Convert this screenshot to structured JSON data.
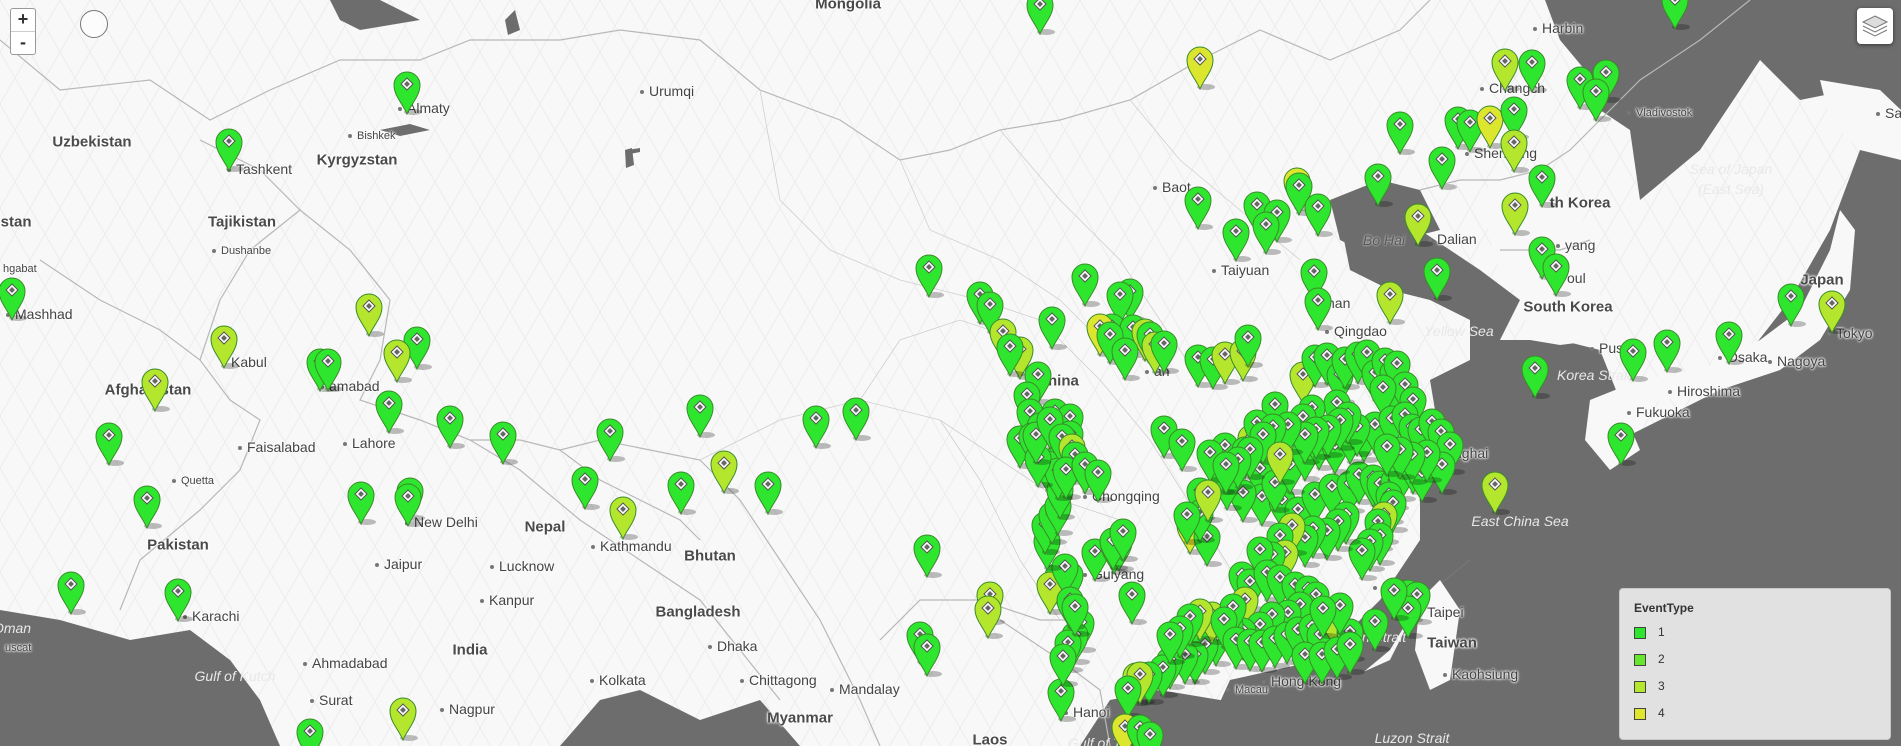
{
  "map": {
    "countries": [
      {
        "id": "mongolia",
        "text": "Mongolia"
      },
      {
        "id": "uzbekistan",
        "text": "Uzbekistan"
      },
      {
        "id": "kyrgyzstan",
        "text": "Kyrgyzstan"
      },
      {
        "id": "tajikistan",
        "text": "Tajikistan"
      },
      {
        "id": "turkmenistan",
        "text": "istan"
      },
      {
        "id": "afghanistan",
        "text": "Afghanistan"
      },
      {
        "id": "pakistan",
        "text": "Pakistan"
      },
      {
        "id": "nepal",
        "text": "Nepal"
      },
      {
        "id": "bhutan",
        "text": "Bhutan"
      },
      {
        "id": "bangladesh",
        "text": "Bangladesh"
      },
      {
        "id": "india",
        "text": "India"
      },
      {
        "id": "myanmar",
        "text": "Myanmar"
      },
      {
        "id": "laos",
        "text": "Laos"
      },
      {
        "id": "china",
        "text": "China"
      },
      {
        "id": "south-korea",
        "text": "South Korea"
      },
      {
        "id": "north-korea",
        "text": "th Korea"
      },
      {
        "id": "japan",
        "text": "Japan"
      },
      {
        "id": "taiwan",
        "text": "Taiwan"
      }
    ],
    "cities": [
      {
        "id": "harbin",
        "text": "Harbin"
      },
      {
        "id": "urumqi",
        "text": "Urumqi"
      },
      {
        "id": "almaty",
        "text": "Almaty"
      },
      {
        "id": "bishkek",
        "text": "Bishkek"
      },
      {
        "id": "tashkent",
        "text": "Tashkent"
      },
      {
        "id": "dushanbe",
        "text": "Dushanbe"
      },
      {
        "id": "ashgabat",
        "text": "hgabat"
      },
      {
        "id": "mashhad",
        "text": "Mashhad"
      },
      {
        "id": "kabul",
        "text": "Kabul"
      },
      {
        "id": "islamabad",
        "text": "amabad"
      },
      {
        "id": "lahore",
        "text": "Lahore"
      },
      {
        "id": "faisalabad",
        "text": "Faisalabad"
      },
      {
        "id": "quetta",
        "text": "Quetta"
      },
      {
        "id": "new-delhi",
        "text": "New Delhi"
      },
      {
        "id": "kathmandu",
        "text": "Kathmandu"
      },
      {
        "id": "lucknow",
        "text": "Lucknow"
      },
      {
        "id": "jaipur",
        "text": "Jaipur"
      },
      {
        "id": "kanpur",
        "text": "Kanpur"
      },
      {
        "id": "karachi",
        "text": "Karachi"
      },
      {
        "id": "ahmadabad",
        "text": "Ahmadabad"
      },
      {
        "id": "surat",
        "text": "Surat"
      },
      {
        "id": "nagpur",
        "text": "Nagpur"
      },
      {
        "id": "kolkata",
        "text": "Kolkata"
      },
      {
        "id": "dhaka",
        "text": "Dhaka"
      },
      {
        "id": "chittagong",
        "text": "Chittagong"
      },
      {
        "id": "mandalay",
        "text": "Mandalay"
      },
      {
        "id": "chongqing",
        "text": "Chongqing"
      },
      {
        "id": "guiyang",
        "text": "Guiyang"
      },
      {
        "id": "hanoi",
        "text": "Hanoi"
      },
      {
        "id": "hong-kong",
        "text": "Hong Kong"
      },
      {
        "id": "macau",
        "text": "Macau"
      },
      {
        "id": "fuzhou",
        "text": "Fuz"
      },
      {
        "id": "taipei",
        "text": "Taipei"
      },
      {
        "id": "kaohsiung",
        "text": "Kaohsiung"
      },
      {
        "id": "shanghai",
        "text": "nghai"
      },
      {
        "id": "qingdao",
        "text": "Qingdao"
      },
      {
        "id": "jinan",
        "text": "nan"
      },
      {
        "id": "taiyuan",
        "text": "Taiyuan"
      },
      {
        "id": "baotou",
        "text": "Baot"
      },
      {
        "id": "dalian",
        "text": "Dalian"
      },
      {
        "id": "shenyang",
        "text": "Shenyang"
      },
      {
        "id": "changchun",
        "text": "Changch"
      },
      {
        "id": "vladivostok",
        "text": "Vladivostok"
      },
      {
        "id": "pyongyang",
        "text": "yang"
      },
      {
        "id": "seoul",
        "text": "oul"
      },
      {
        "id": "busan",
        "text": "Pus"
      },
      {
        "id": "fukuoka",
        "text": "Fukuoka"
      },
      {
        "id": "hiroshima",
        "text": "Hiroshima"
      },
      {
        "id": "osaka",
        "text": "Osaka"
      },
      {
        "id": "nagoya",
        "text": "Nagoya"
      },
      {
        "id": "tokyo",
        "text": "Tokyo"
      },
      {
        "id": "sapporo",
        "text": "Sap"
      },
      {
        "id": "muscat",
        "text": "uscat"
      },
      {
        "id": "an",
        "text": "an"
      }
    ],
    "waters": [
      {
        "id": "sea-of-japan",
        "text": "Sea of Japan"
      },
      {
        "id": "east-sea",
        "text": "(East Sea)"
      },
      {
        "id": "bo-hai",
        "text": "Bo Hai"
      },
      {
        "id": "yellow-sea",
        "text": "Yellow Sea"
      },
      {
        "id": "korea-strait",
        "text": "Korea Strait"
      },
      {
        "id": "east-china-sea",
        "text": "East China Sea"
      },
      {
        "id": "taiwan-strait",
        "text": "n Strait"
      },
      {
        "id": "luzon-strait",
        "text": "Luzon Strait"
      },
      {
        "id": "gulf-of-kutch",
        "text": "Gulf of Kutch"
      },
      {
        "id": "gulf-of-tonkin",
        "text": "Gulf of To"
      },
      {
        "id": "oman",
        "text": "Oman"
      }
    ],
    "marker_colors": {
      "1": "#2ee62e",
      "2": "#66e62e",
      "3": "#b5e62e",
      "4": "#dde62e"
    }
  },
  "legend": {
    "title": "EventType",
    "items": [
      {
        "label": "1",
        "color": "#2ee62e"
      },
      {
        "label": "2",
        "color": "#66e62e"
      },
      {
        "label": "3",
        "color": "#b5e62e"
      },
      {
        "label": "4",
        "color": "#e0e62e"
      }
    ]
  },
  "controls": {
    "zoom_in": "+",
    "zoom_out": "-"
  }
}
